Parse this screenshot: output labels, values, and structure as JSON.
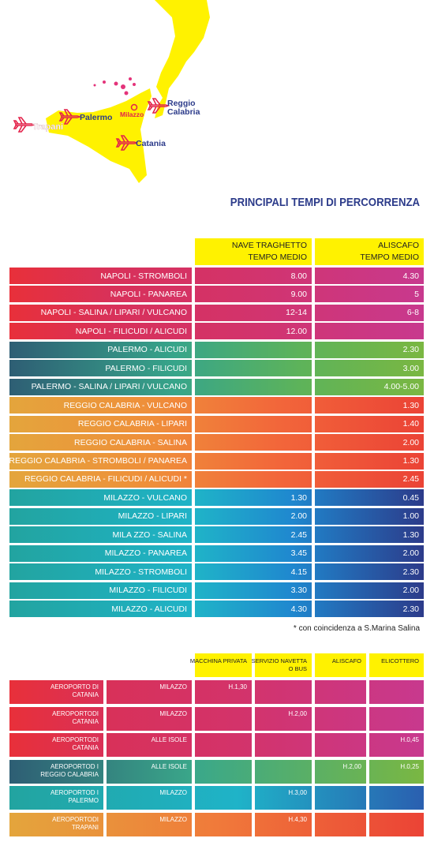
{
  "map": {
    "cities": {
      "trapani": "Trapani",
      "palermo": "Palermo",
      "milazzo": "Milazzo",
      "reggio": [
        "Reggio",
        "Calabria"
      ],
      "catania": "Catania"
    }
  },
  "title": "PRINCIPALI TEMPI DI PERCORRENZA",
  "table1": {
    "headers": [
      [
        "NAVE TRAGHETTO",
        "TEMPO MEDIO"
      ],
      [
        "ALISCAFO",
        "TEMPO MEDIO"
      ]
    ],
    "groups": [
      [
        {
          "route": "NAPOLI - STROMBOLI",
          "nave": "8.00",
          "aliscafo": "4.30"
        },
        {
          "route": "NAPOLI - PANAREA",
          "nave": "9.00",
          "aliscafo": "5"
        },
        {
          "route": "NAPOLI - SALINA / LIPARI / VULCANO",
          "nave": "12-14",
          "aliscafo": "6-8"
        },
        {
          "route": "NAPOLI - FILICUDI / ALICUDI",
          "nave": "12.00",
          "aliscafo": null
        }
      ],
      [
        {
          "route": "PALERMO - ALICUDI",
          "nave": null,
          "aliscafo": "2.30"
        },
        {
          "route": "PALERMO - FILICUDI",
          "nave": null,
          "aliscafo": "3.00"
        },
        {
          "route": "PALERMO - SALINA / LIPARI / VULCANO",
          "nave": null,
          "aliscafo": "4.00-5.00"
        }
      ],
      [
        {
          "route": "REGGIO CALABRIA - VULCANO",
          "nave": null,
          "aliscafo": "1.30"
        },
        {
          "route": "REGGIO CALABRIA - LIPARI",
          "nave": null,
          "aliscafo": "1.40"
        },
        {
          "route": "REGGIO CALABRIA - SALINA",
          "nave": null,
          "aliscafo": "2.00"
        },
        {
          "route": "REGGIO CALABRIA - STROMBOLI / PANAREA",
          "nave": null,
          "aliscafo": "1.30"
        },
        {
          "route": "REGGIO CALABRIA - FILICUDI / ALICUDI *",
          "nave": null,
          "aliscafo": "2.45"
        }
      ],
      [
        {
          "route": "MILAZZO - VULCANO",
          "nave": "1.30",
          "aliscafo": "0.45"
        },
        {
          "route": "MILAZZO - LIPARI",
          "nave": "2.00",
          "aliscafo": "1.00"
        },
        {
          "route": "MILA ZZO - SALINA",
          "nave": "2.45",
          "aliscafo": "1.30"
        },
        {
          "route": "MILAZZO - PANAREA",
          "nave": "3.45",
          "aliscafo": "2.00"
        },
        {
          "route": "MILAZZO - STROMBOLI",
          "nave": "4.15",
          "aliscafo": "2.30"
        },
        {
          "route": "MILAZZO - FILICUDI",
          "nave": "3.30",
          "aliscafo": "2.00"
        },
        {
          "route": "MILAZZO - ALICUDI",
          "nave": "4.30",
          "aliscafo": "2.30"
        }
      ]
    ],
    "note": "* con coincidenza a S.Marina Salina"
  },
  "table2": {
    "headers": [
      [
        "MACCHINA PRIVATA"
      ],
      [
        "SERVIZIO NAVETTA",
        "O BUS"
      ],
      [
        "ALISCAFO"
      ],
      [
        "ELICOTTERO"
      ]
    ],
    "rows": [
      {
        "from": [
          "AEROPORTO DI",
          "CATANIA"
        ],
        "to": "MILAZZO",
        "times": [
          "H.1,30",
          null,
          null,
          null
        ]
      },
      {
        "from": [
          "AEROPORTODI",
          "CATANIA"
        ],
        "to": "MILAZZO",
        "times": [
          null,
          "H.2,00",
          null,
          null
        ]
      },
      {
        "from": [
          "AEROPORTODI",
          "CATANIA"
        ],
        "to": "ALLE ISOLE",
        "times": [
          null,
          null,
          null,
          "H.0,45"
        ]
      },
      {
        "from": [
          "AEROPORTOD I",
          "REGGIO CALABRIA"
        ],
        "to": "ALLE ISOLE",
        "times": [
          null,
          null,
          "H.2,00",
          "H.0,25"
        ]
      },
      {
        "from": [
          "AEROPORTOD I",
          "PALERMO"
        ],
        "to": "MILAZZO",
        "times": [
          null,
          "H.3,00",
          null,
          null
        ]
      },
      {
        "from": [
          "AEROPORTODI",
          "TRAPANI"
        ],
        "to": "MILAZZO",
        "times": [
          null,
          "H.4,30",
          null,
          null
        ]
      }
    ]
  }
}
